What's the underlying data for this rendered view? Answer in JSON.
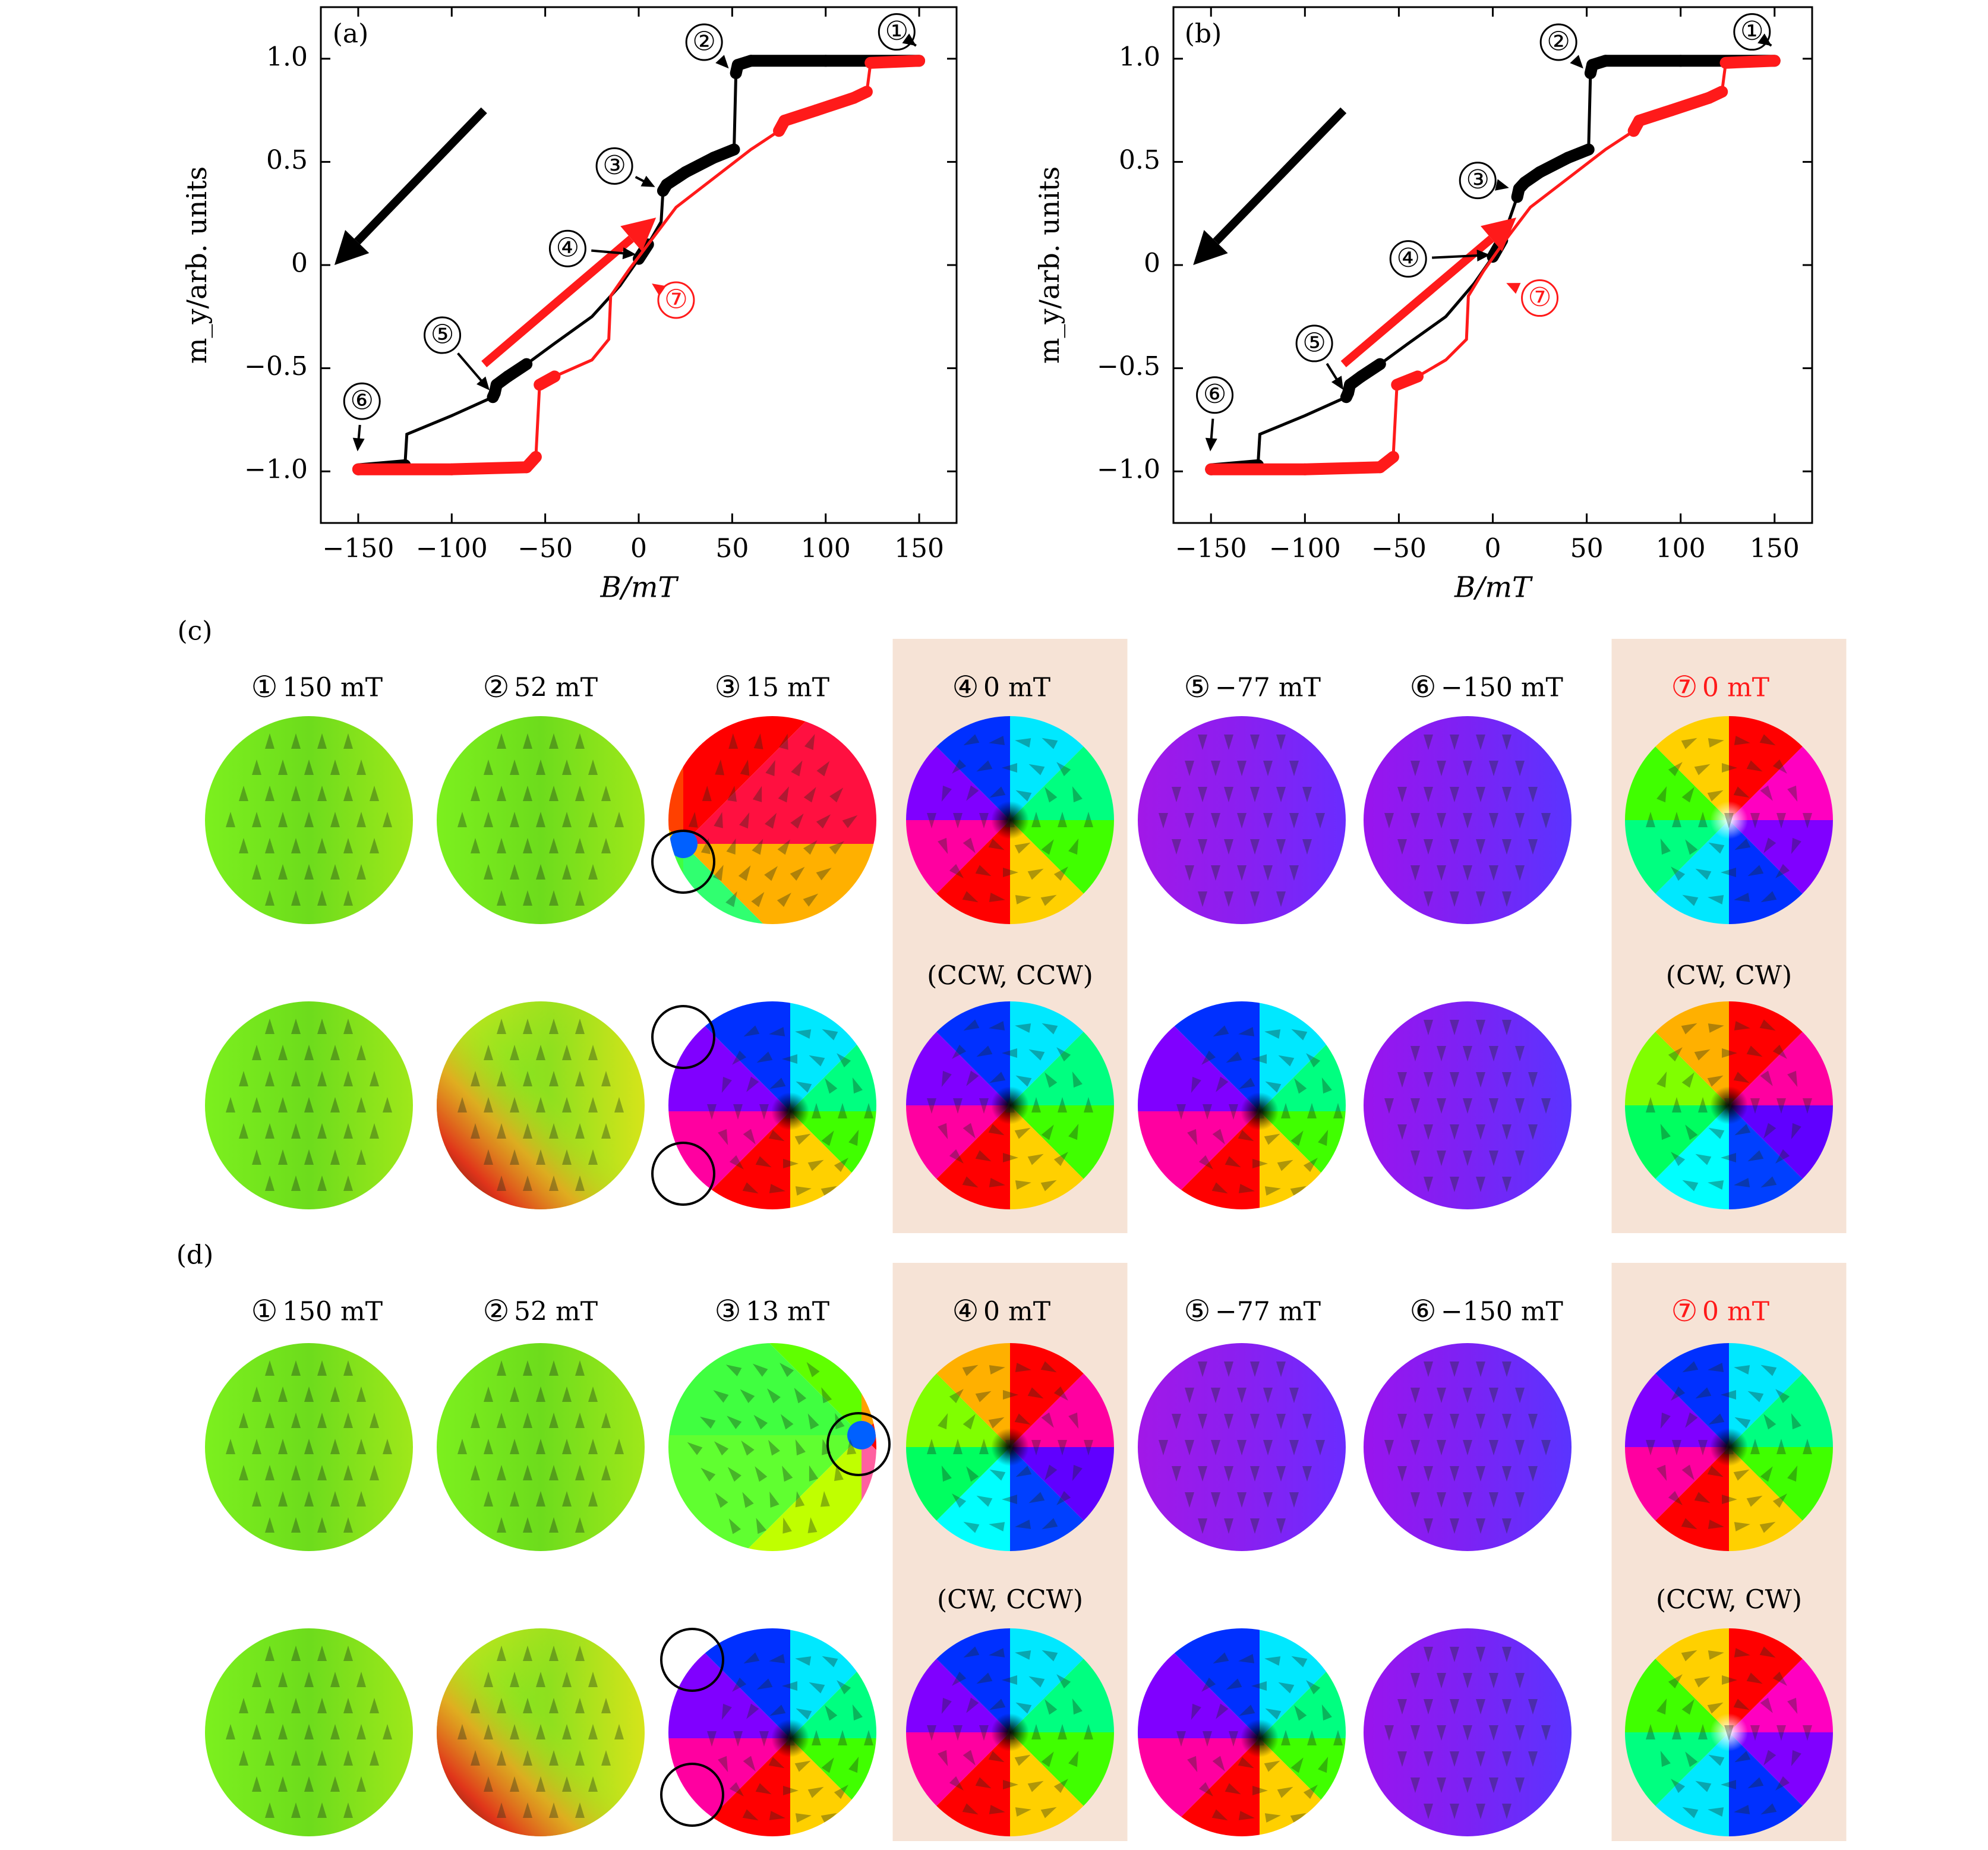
{
  "colors": {
    "descending": "#000000",
    "ascending": "#ff1a1a",
    "highlight_bg": "#f6e3d6"
  },
  "chart_data": [
    {
      "panel": "(a)",
      "type": "line",
      "xlabel": "B/mT",
      "ylabel": "m_y/arb. units",
      "xlim": [
        -170,
        170
      ],
      "ylim": [
        -1.25,
        1.25
      ],
      "xticks": [
        -150,
        -100,
        -50,
        0,
        50,
        100,
        150
      ],
      "yticks": [
        -1.0,
        -0.5,
        0,
        0.5,
        1.0
      ],
      "xtick_labels": [
        "−150",
        "−100",
        "−50",
        "0",
        "50",
        "100",
        "150"
      ],
      "ytick_labels": [
        "−1.0",
        "−0.5",
        "0",
        "0.5",
        "1.0"
      ],
      "series": [
        {
          "color": "#000000",
          "direction": "descending",
          "points": [
            [
              150,
              0.99
            ],
            [
              100,
              0.99
            ],
            [
              60,
              0.99
            ],
            [
              53,
              0.97
            ],
            [
              52,
              0.93
            ],
            [
              51,
              0.56
            ],
            [
              40,
              0.52
            ],
            [
              25,
              0.45
            ],
            [
              15,
              0.39
            ],
            [
              13,
              0.36
            ],
            [
              12,
              0.21
            ],
            [
              5,
              0.1
            ],
            [
              0,
              0.03
            ],
            [
              -10,
              -0.1
            ],
            [
              -25,
              -0.25
            ],
            [
              -45,
              -0.38
            ],
            [
              -60,
              -0.48
            ],
            [
              -70,
              -0.54
            ],
            [
              -76,
              -0.58
            ],
            [
              -77,
              -0.62
            ],
            [
              -78,
              -0.64
            ],
            [
              -100,
              -0.73
            ],
            [
              -124,
              -0.82
            ],
            [
              -125,
              -0.97
            ],
            [
              -150,
              -0.99
            ]
          ]
        },
        {
          "color": "#ff1a1a",
          "direction": "ascending",
          "points": [
            [
              -150,
              -0.99
            ],
            [
              -100,
              -0.99
            ],
            [
              -60,
              -0.98
            ],
            [
              -55,
              -0.93
            ],
            [
              -53,
              -0.58
            ],
            [
              -45,
              -0.54
            ],
            [
              -25,
              -0.46
            ],
            [
              -16,
              -0.36
            ],
            [
              -15,
              -0.15
            ],
            [
              -5,
              -0.02
            ],
            [
              5,
              0.1
            ],
            [
              20,
              0.28
            ],
            [
              40,
              0.42
            ],
            [
              60,
              0.56
            ],
            [
              75,
              0.65
            ],
            [
              78,
              0.7
            ],
            [
              95,
              0.75
            ],
            [
              115,
              0.81
            ],
            [
              122,
              0.84
            ],
            [
              124,
              0.98
            ],
            [
              150,
              0.99
            ]
          ]
        }
      ],
      "annotations": [
        {
          "label": "①",
          "x": 138,
          "y": 1.13,
          "color": "#000000"
        },
        {
          "label": "②",
          "x": 35,
          "y": 1.08,
          "color": "#000000"
        },
        {
          "label": "③",
          "x": -13,
          "y": 0.48,
          "color": "#000000"
        },
        {
          "label": "④",
          "x": -38,
          "y": 0.08,
          "color": "#000000"
        },
        {
          "label": "⑤",
          "x": -105,
          "y": -0.34,
          "color": "#000000"
        },
        {
          "label": "⑥",
          "x": -148,
          "y": -0.66,
          "color": "#000000"
        },
        {
          "label": "⑦",
          "x": 20,
          "y": -0.17,
          "color": "#ff1a1a"
        }
      ]
    },
    {
      "panel": "(b)",
      "type": "line",
      "xlabel": "B/mT",
      "ylabel": "m_y/arb. units",
      "xlim": [
        -170,
        170
      ],
      "ylim": [
        -1.25,
        1.25
      ],
      "xticks": [
        -150,
        -100,
        -50,
        0,
        50,
        100,
        150
      ],
      "yticks": [
        -1.0,
        -0.5,
        0,
        0.5,
        1.0
      ],
      "xtick_labels": [
        "−150",
        "−100",
        "−50",
        "0",
        "50",
        "100",
        "150"
      ],
      "ytick_labels": [
        "−1.0",
        "−0.5",
        "0",
        "0.5",
        "1.0"
      ],
      "series": [
        {
          "color": "#000000",
          "direction": "descending",
          "points": [
            [
              150,
              0.99
            ],
            [
              100,
              0.99
            ],
            [
              60,
              0.99
            ],
            [
              53,
              0.97
            ],
            [
              52,
              0.93
            ],
            [
              51,
              0.56
            ],
            [
              40,
              0.52
            ],
            [
              25,
              0.45
            ],
            [
              17,
              0.4
            ],
            [
              14,
              0.37
            ],
            [
              13,
              0.33
            ],
            [
              5,
              0.12
            ],
            [
              0,
              0.04
            ],
            [
              -10,
              -0.09
            ],
            [
              -25,
              -0.25
            ],
            [
              -45,
              -0.38
            ],
            [
              -60,
              -0.48
            ],
            [
              -70,
              -0.54
            ],
            [
              -76,
              -0.58
            ],
            [
              -77,
              -0.62
            ],
            [
              -78,
              -0.64
            ],
            [
              -100,
              -0.73
            ],
            [
              -124,
              -0.82
            ],
            [
              -125,
              -0.97
            ],
            [
              -150,
              -0.99
            ]
          ]
        },
        {
          "color": "#ff1a1a",
          "direction": "ascending",
          "points": [
            [
              -150,
              -0.99
            ],
            [
              -100,
              -0.99
            ],
            [
              -60,
              -0.98
            ],
            [
              -53,
              -0.93
            ],
            [
              -51,
              -0.58
            ],
            [
              -40,
              -0.54
            ],
            [
              -25,
              -0.46
            ],
            [
              -14,
              -0.36
            ],
            [
              -13,
              -0.15
            ],
            [
              -5,
              -0.03
            ],
            [
              5,
              0.1
            ],
            [
              20,
              0.28
            ],
            [
              40,
              0.42
            ],
            [
              60,
              0.56
            ],
            [
              75,
              0.65
            ],
            [
              78,
              0.7
            ],
            [
              95,
              0.75
            ],
            [
              115,
              0.81
            ],
            [
              122,
              0.84
            ],
            [
              124,
              0.98
            ],
            [
              150,
              0.99
            ]
          ]
        }
      ],
      "annotations": [
        {
          "label": "①",
          "x": 138,
          "y": 1.13,
          "color": "#000000"
        },
        {
          "label": "②",
          "x": 35,
          "y": 1.08,
          "color": "#000000"
        },
        {
          "label": "③",
          "x": -8,
          "y": 0.41,
          "color": "#000000"
        },
        {
          "label": "④",
          "x": -45,
          "y": 0.03,
          "color": "#000000"
        },
        {
          "label": "⑤",
          "x": -95,
          "y": -0.38,
          "color": "#000000"
        },
        {
          "label": "⑥",
          "x": -148,
          "y": -0.63,
          "color": "#000000"
        },
        {
          "label": "⑦",
          "x": 25,
          "y": -0.16,
          "color": "#ff1a1a"
        }
      ]
    }
  ],
  "snapshots": {
    "c": {
      "panel_label": "(c)",
      "headers": [
        {
          "num": "①",
          "text": "150 mT",
          "color": "#000000"
        },
        {
          "num": "②",
          "text": "52 mT",
          "color": "#000000"
        },
        {
          "num": "③",
          "text": "15 mT",
          "color": "#000000"
        },
        {
          "num": "④",
          "text": "0 mT",
          "color": "#000000"
        },
        {
          "num": "⑤",
          "text": "−77 mT",
          "color": "#000000"
        },
        {
          "num": "⑥",
          "text": "−150 mT",
          "color": "#000000"
        },
        {
          "num": "⑦",
          "text": "0 mT",
          "color": "#ff1a1a"
        }
      ],
      "chirality": {
        "col4": "(CCW, CCW)",
        "col7": "(CW, CW)"
      }
    },
    "d": {
      "panel_label": "(d)",
      "headers": [
        {
          "num": "①",
          "text": "150 mT",
          "color": "#000000"
        },
        {
          "num": "②",
          "text": "52 mT",
          "color": "#000000"
        },
        {
          "num": "③",
          "text": "13 mT",
          "color": "#000000"
        },
        {
          "num": "④",
          "text": "0 mT",
          "color": "#000000"
        },
        {
          "num": "⑤",
          "text": "−77 mT",
          "color": "#000000"
        },
        {
          "num": "⑥",
          "text": "−150 mT",
          "color": "#000000"
        },
        {
          "num": "⑦",
          "text": "0 mT",
          "color": "#ff1a1a"
        }
      ],
      "chirality": {
        "col4": "(CW, CCW)",
        "col7": "(CCW, CW)"
      }
    }
  }
}
